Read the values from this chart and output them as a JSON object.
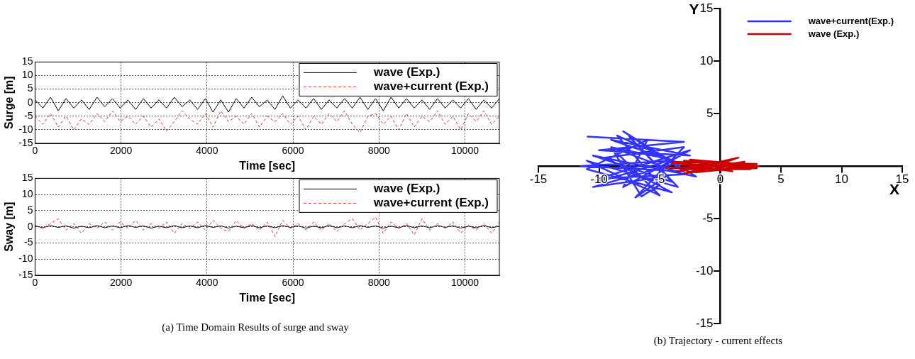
{
  "chart_data": [
    {
      "type": "line",
      "ylabel": "Surge [m]",
      "xlabel": "Time [sec]",
      "xlim": [
        0,
        10800
      ],
      "xticks": [
        0,
        2000,
        4000,
        6000,
        8000,
        10000
      ],
      "ylim": [
        -15,
        15
      ],
      "yticks": [
        -15,
        -10,
        -5,
        0,
        5,
        10,
        15
      ],
      "grid": true,
      "legend": "top right",
      "marker": "none",
      "x": [
        0,
        180,
        360,
        540,
        720,
        900,
        1080,
        1260,
        1440,
        1620,
        1800,
        1980,
        2160,
        2340,
        2520,
        2700,
        2880,
        3060,
        3240,
        3420,
        3600,
        3780,
        3960,
        4140,
        4320,
        4500,
        4680,
        4860,
        5040,
        5220,
        5400,
        5580,
        5760,
        5940,
        6120,
        6300,
        6480,
        6660,
        6840,
        7020,
        7200,
        7380,
        7560,
        7740,
        7920,
        8100,
        8280,
        8460,
        8640,
        8820,
        9000,
        9180,
        9360,
        9540,
        9720,
        9900,
        10080,
        10260,
        10440,
        10620,
        10800
      ],
      "series": [
        {
          "name": "wave (Exp.)",
          "color": "#000000",
          "line_style": "solid",
          "values": [
            1,
            -2,
            2,
            -3,
            1.5,
            -2,
            1,
            -2.5,
            2,
            -1.5,
            1.5,
            -2,
            1,
            -2.5,
            1.5,
            -2,
            1,
            -2,
            2,
            -1.5,
            1,
            -2.5,
            1.5,
            -3.5,
            1,
            -3.5,
            1.5,
            -2,
            2,
            -1.5,
            1,
            -2.5,
            2.5,
            -2,
            1,
            -2,
            1.5,
            -2.5,
            1,
            -2,
            1.5,
            -2,
            2,
            -2.5,
            1.5,
            -3,
            2,
            -2,
            1.5,
            -2,
            1,
            -2.5,
            1.5,
            -2,
            1,
            -2,
            1.5,
            -2.5,
            1,
            -2,
            1.5
          ]
        },
        {
          "name": "wave+current (Exp.)",
          "color": "#e8332e",
          "line_style": "dashed",
          "values": [
            -5,
            -8,
            -4,
            -9,
            -5,
            -10,
            -6,
            -8,
            -4,
            -7,
            -3,
            -7,
            -5,
            -8,
            -5,
            -9,
            -6,
            -10.5,
            -7,
            -3,
            -6,
            -8,
            -4,
            -9,
            -3,
            -7,
            -5,
            -8,
            -4,
            -9,
            -5,
            -7,
            -4,
            -8,
            -5,
            -10,
            -5,
            -8,
            -4,
            -7,
            -3,
            -8,
            -11,
            -5,
            -4,
            -8,
            -5,
            -10,
            -4,
            -9,
            -5,
            -7,
            -3,
            -8,
            -5,
            -10,
            -4,
            -7,
            -3,
            -8,
            -5
          ]
        }
      ]
    },
    {
      "type": "line",
      "ylabel": "Sway [m]",
      "xlabel": "Time [sec]",
      "xlim": [
        0,
        10800
      ],
      "xticks": [
        0,
        2000,
        4000,
        6000,
        8000,
        10000
      ],
      "ylim": [
        -15,
        15
      ],
      "yticks": [
        -15,
        -10,
        -5,
        0,
        5,
        10,
        15
      ],
      "grid": true,
      "legend": "top right",
      "marker": "none",
      "annotations": [
        "(a) Time Domain Results of surge and sway"
      ],
      "x": [
        0,
        180,
        360,
        540,
        720,
        900,
        1080,
        1260,
        1440,
        1620,
        1800,
        1980,
        2160,
        2340,
        2520,
        2700,
        2880,
        3060,
        3240,
        3420,
        3600,
        3780,
        3960,
        4140,
        4320,
        4500,
        4680,
        4860,
        5040,
        5220,
        5400,
        5580,
        5760,
        5940,
        6120,
        6300,
        6480,
        6660,
        6840,
        7020,
        7200,
        7380,
        7560,
        7740,
        7920,
        8100,
        8280,
        8460,
        8640,
        8820,
        9000,
        9180,
        9360,
        9540,
        9720,
        9900,
        10080,
        10260,
        10440,
        10620,
        10800
      ],
      "series": [
        {
          "name": "wave (Exp.)",
          "color": "#000000",
          "line_style": "solid",
          "values": [
            0.3,
            -0.3,
            0.4,
            -0.2,
            0.3,
            -0.4,
            0.2,
            -0.3,
            0.4,
            -0.3,
            0.3,
            -0.3,
            0.4,
            -0.2,
            0.3,
            -0.4,
            0.2,
            -0.3,
            0.4,
            -0.3,
            0.3,
            -0.3,
            0.4,
            -0.2,
            0.3,
            -0.4,
            0.2,
            -0.3,
            0.4,
            -0.3,
            0.3,
            -0.3,
            0.4,
            -0.2,
            0.3,
            -0.4,
            0.2,
            -0.3,
            0.4,
            -0.3,
            0.3,
            -0.3,
            0.4,
            -0.2,
            0.3,
            -0.4,
            0.2,
            -0.3,
            0.4,
            -0.3,
            0.3,
            -0.3,
            0.4,
            -0.2,
            0.3,
            -0.4,
            0.2,
            -0.3,
            0.4,
            -0.3,
            0.2
          ]
        },
        {
          "name": "wave+current (Exp.)",
          "color": "#e8332e",
          "line_style": "dashed",
          "values": [
            0.5,
            -0.5,
            1,
            2.5,
            -1,
            1,
            -2,
            1,
            -0.5,
            1.5,
            -1,
            1.5,
            -0.5,
            2,
            -1,
            1,
            -0.5,
            1.5,
            -2,
            1,
            -0.5,
            1.5,
            -1,
            2,
            -0.5,
            -1.5,
            2,
            -0.5,
            1,
            -1,
            1.5,
            -3,
            2,
            -0.5,
            1,
            -1,
            1.5,
            -1,
            1,
            -1.5,
            1,
            2.5,
            -1,
            1,
            3,
            -2,
            1.5,
            -0.5,
            1,
            -2.5,
            2.5,
            -1,
            1,
            -0.5,
            1.5,
            -2,
            0.5,
            -1,
            1,
            -2,
            1.5
          ]
        }
      ]
    },
    {
      "type": "line",
      "xlabel": "X",
      "ylabel": "Y",
      "xlim": [
        -15,
        15
      ],
      "xticks": [
        -15,
        -10,
        -5,
        0,
        5,
        10,
        15
      ],
      "ylim": [
        -15,
        15
      ],
      "yticks": [
        -15,
        -10,
        -5,
        {
          "value": 0,
          "label": null
        },
        5,
        10,
        15
      ],
      "legend": "top right",
      "marker": "none",
      "annotations": [
        "(b) Trajectory - current effects"
      ],
      "series": [
        {
          "name": "wave+current(Exp.)",
          "color": "#3333ff",
          "x": [
            -11,
            -3,
            -10,
            -2.5,
            -9,
            -4,
            -11.5,
            -3,
            -8,
            -2,
            -10.5,
            -4,
            -7.5,
            -3.5,
            -11,
            -5,
            -9,
            -3,
            -10,
            -2.5,
            -8,
            -6,
            -11,
            -4,
            -9.5,
            -3,
            -7,
            -4.5,
            -10.5,
            -3.5,
            -8.5,
            -5,
            -6.5,
            -9,
            -4,
            -10
          ],
          "values": [
            2.8,
            2.3,
            1.5,
            1.0,
            2.5,
            0.5,
            0,
            -0.5,
            3.3,
            -1,
            1,
            -1.5,
            2.8,
            -2,
            0.5,
            -2.8,
            1.8,
            -0.8,
            -1.2,
            1.5,
            -2,
            2.5,
            -0.3,
            -2.5,
            0.8,
            1.8,
            -3,
            -1,
            -2,
            0.3,
            2.9,
            -1.8,
            -2.9,
            1.8,
            0.6,
            -1.5
          ]
        },
        {
          "name": "wave (Exp.)",
          "color": "#cc0000",
          "x": [
            -4,
            3,
            -4.5,
            2.5,
            -3,
            3.2,
            -2,
            1.5,
            -3.5,
            2,
            -1,
            3,
            -4,
            1,
            -2.5,
            2.8,
            -3,
            0.5
          ],
          "values": [
            0.4,
            0.2,
            -0.2,
            -0.3,
            0.5,
            0,
            -0.6,
            0.8,
            -0.5,
            0.4,
            -0.4,
            -0.2,
            0.3,
            -0.5,
            0.6,
            0.1,
            -0.7,
            0.3
          ]
        }
      ]
    }
  ]
}
